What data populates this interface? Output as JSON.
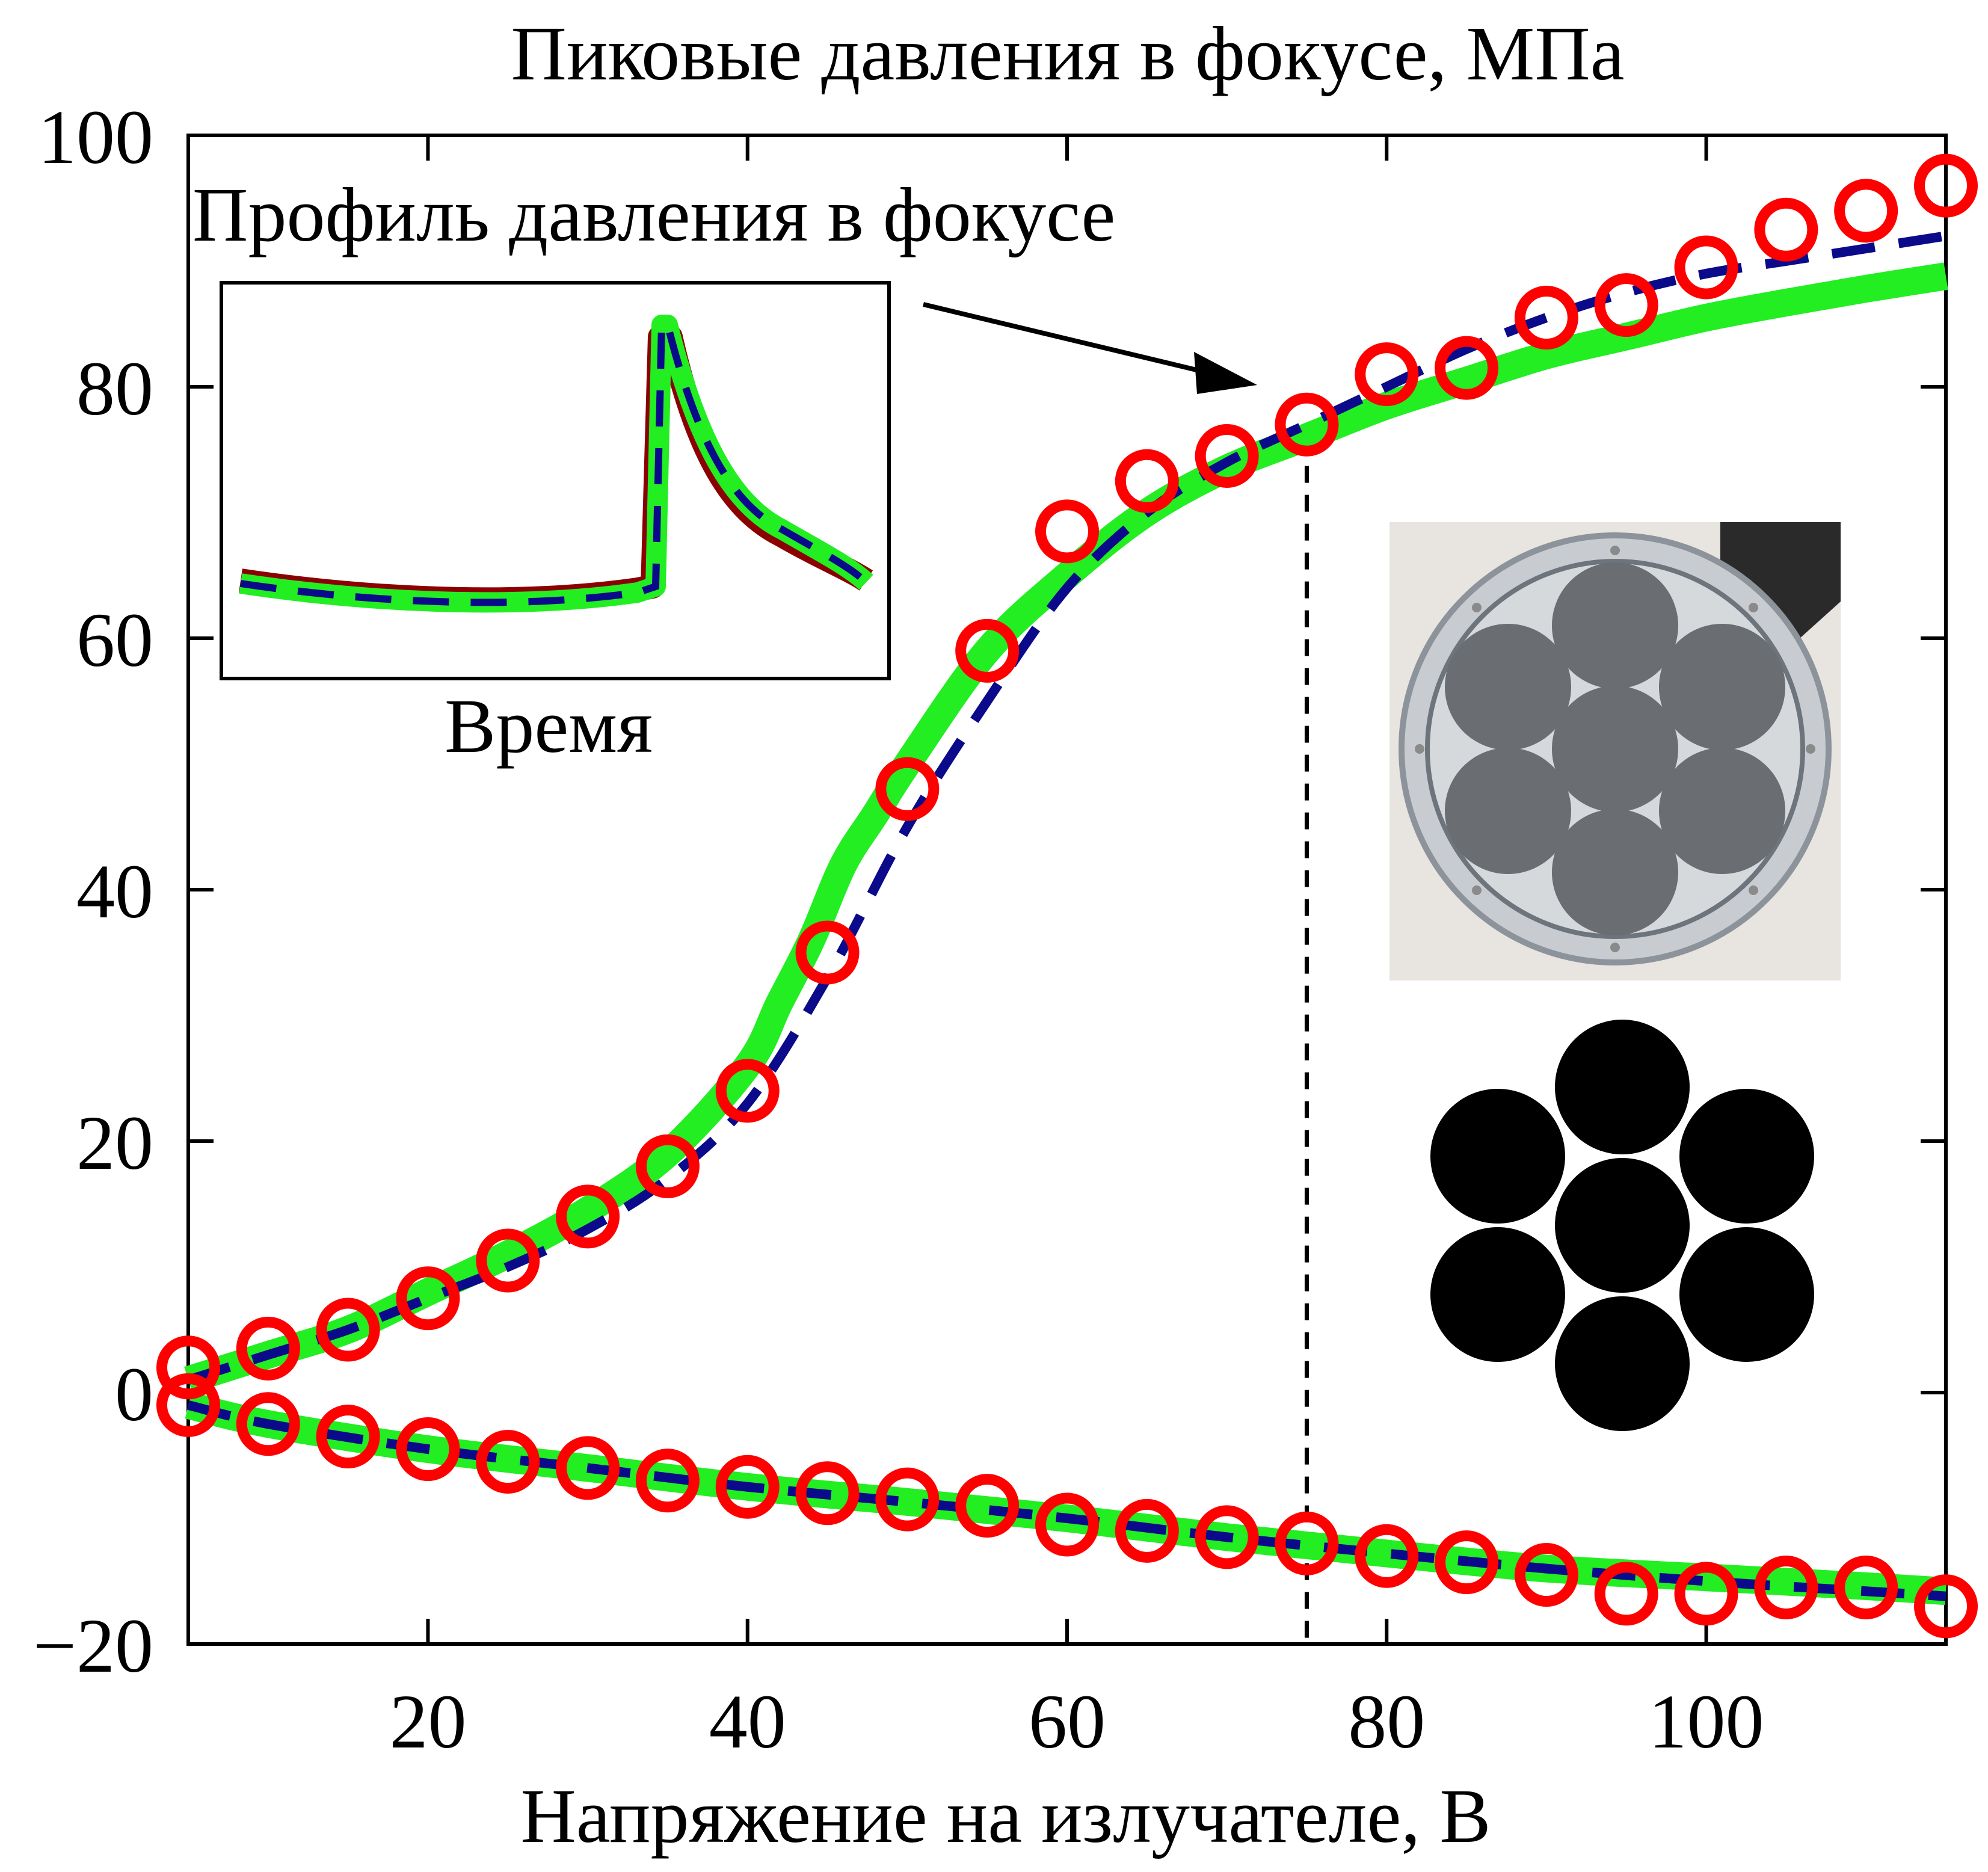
{
  "chart_data": {
    "type": "line",
    "title": "Пиковые давления в фокусе, МПа",
    "xlabel": "Напряжение на излучателе, В",
    "ylabel": "",
    "xlim": [
      5,
      115
    ],
    "ylim": [
      -20,
      100
    ],
    "xticks": [
      20,
      40,
      60,
      80,
      100
    ],
    "yticks": [
      -20,
      0,
      20,
      40,
      60,
      80,
      100
    ],
    "ytick_labels": [
      "−20",
      "0",
      "20",
      "40",
      "60",
      "80",
      "100"
    ],
    "grid": false,
    "vline_x": 75,
    "series": [
      {
        "kind": "markers",
        "color": "#ff0000",
        "marker": "circle",
        "x": [
          5,
          10,
          15,
          20,
          25,
          30,
          35,
          40,
          45,
          50,
          55,
          60,
          65,
          70,
          75,
          80,
          85,
          90,
          95,
          100,
          105,
          110,
          115
        ],
        "y": [
          2,
          3.5,
          5,
          7.5,
          10.5,
          14,
          18,
          24,
          35,
          48,
          59,
          68.5,
          72.5,
          74.5,
          77,
          81,
          81.5,
          85.5,
          86.5,
          89.5,
          92.5,
          94,
          96
        ]
      },
      {
        "kind": "markers",
        "color": "#ff0000",
        "marker": "circle",
        "x": [
          5,
          10,
          15,
          20,
          25,
          30,
          35,
          40,
          45,
          50,
          55,
          60,
          65,
          70,
          75,
          80,
          85,
          90,
          95,
          100,
          105,
          110,
          115
        ],
        "y": [
          -1,
          -2.5,
          -3.5,
          -4.5,
          -5.5,
          -6,
          -7,
          -7.5,
          -8,
          -8.5,
          -9,
          -10.5,
          -11,
          -11.5,
          -12,
          -13,
          -13.5,
          -14.5,
          -16,
          -16,
          -15.5,
          -15.5,
          -17
        ]
      },
      {
        "kind": "line",
        "style": "solid",
        "color": "#22ee22",
        "x": [
          5,
          10,
          15,
          20,
          25,
          30,
          35,
          40,
          42,
          44,
          46,
          48,
          50,
          55,
          60,
          65,
          70,
          75,
          80,
          85,
          90,
          95,
          100,
          105,
          110,
          115
        ],
        "y": [
          1,
          3,
          5,
          8,
          11,
          14.5,
          19,
          26,
          31,
          36,
          42,
          46,
          50,
          59,
          65,
          70,
          73.5,
          76,
          78.5,
          80.5,
          82.5,
          84,
          85.5,
          86.7,
          87.8,
          88.8
        ]
      },
      {
        "kind": "line",
        "style": "dashed",
        "color": "#0a0a8a",
        "x": [
          5,
          10,
          15,
          20,
          25,
          30,
          35,
          40,
          45,
          50,
          55,
          60,
          65,
          70,
          75,
          80,
          85,
          90,
          95,
          100,
          105,
          110,
          115
        ],
        "y": [
          1,
          3,
          5,
          7.5,
          10,
          13,
          17,
          23,
          33,
          45,
          55,
          64,
          70,
          74,
          77,
          80,
          83,
          85.5,
          87.5,
          89,
          90,
          91,
          92
        ]
      },
      {
        "kind": "line",
        "style": "solid",
        "color": "#22ee22",
        "x": [
          5,
          10,
          20,
          30,
          40,
          50,
          60,
          70,
          80,
          90,
          100,
          110,
          115
        ],
        "y": [
          -1,
          -2.5,
          -4.5,
          -6,
          -7.5,
          -8.7,
          -10,
          -11.5,
          -12.8,
          -14,
          -14.7,
          -15.4,
          -15.8
        ]
      },
      {
        "kind": "line",
        "style": "dashed",
        "color": "#0a0a8a",
        "x": [
          5,
          10,
          20,
          30,
          40,
          50,
          60,
          70,
          80,
          90,
          100,
          110,
          115
        ],
        "y": [
          -1,
          -2.5,
          -4.5,
          -6,
          -7.5,
          -8.7,
          -10,
          -11.5,
          -12.8,
          -14,
          -15,
          -15.8,
          -16.2
        ]
      }
    ],
    "annotations": {
      "inset_label": "Профиль давления в фокусе",
      "inset_xlabel": "Время",
      "arrow_target": {
        "x": 73.5,
        "y": 81
      }
    }
  }
}
